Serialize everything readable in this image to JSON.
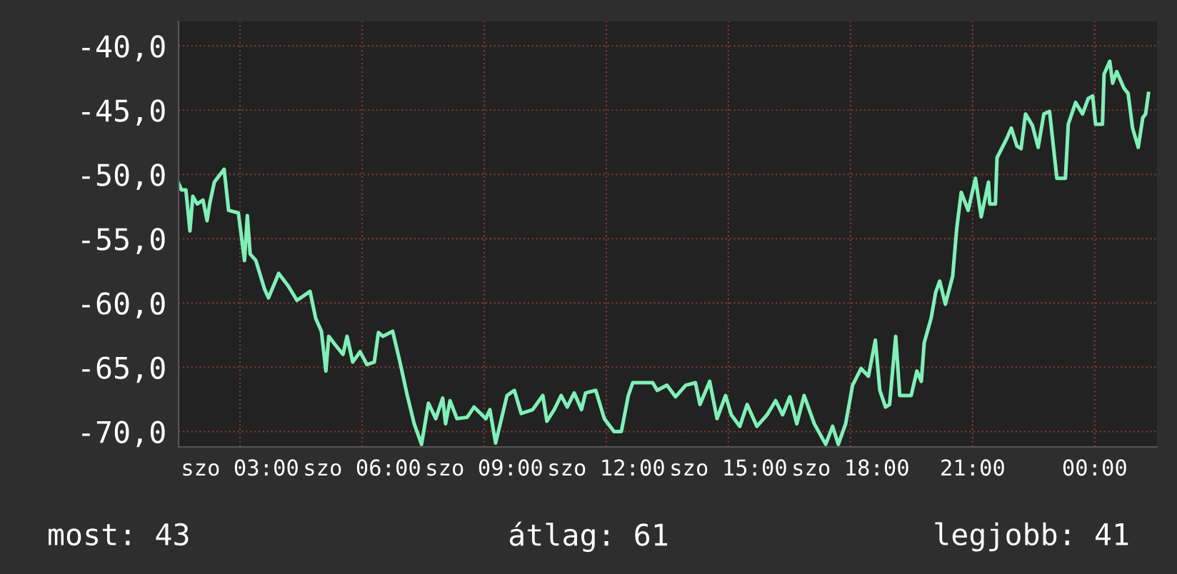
{
  "chart_data": {
    "type": "line",
    "x": [
      1.49,
      1.56,
      1.67,
      1.77,
      1.84,
      1.95,
      2.09,
      2.19,
      2.26,
      2.37,
      2.61,
      2.72,
      2.96,
      3.11,
      3.18,
      3.25,
      3.39,
      3.6,
      3.7,
      3.95,
      4.19,
      4.4,
      4.72,
      4.86,
      5.0,
      5.11,
      5.18,
      5.35,
      5.53,
      5.63,
      5.77,
      5.95,
      6.12,
      6.3,
      6.4,
      6.51,
      6.75,
      6.93,
      7.11,
      7.28,
      7.46,
      7.63,
      7.81,
      7.98,
      8.05,
      8.16,
      8.33,
      8.58,
      8.75,
      9.04,
      9.14,
      9.28,
      9.56,
      9.74,
      9.91,
      10.19,
      10.44,
      10.54,
      10.72,
      10.89,
      11.04,
      11.21,
      11.39,
      11.49,
      11.74,
      11.95,
      12.19,
      12.37,
      12.54,
      12.65,
      13.14,
      13.25,
      13.49,
      13.7,
      13.95,
      14.19,
      14.3,
      14.54,
      14.72,
      14.93,
      15.07,
      15.28,
      15.46,
      15.7,
      15.95,
      16.16,
      16.33,
      16.51,
      16.68,
      16.86,
      17.11,
      17.39,
      17.56,
      17.7,
      17.88,
      18.05,
      18.26,
      18.44,
      18.61,
      18.72,
      18.86,
      18.96,
      19.11,
      19.21,
      19.49,
      19.63,
      19.74,
      19.81,
      19.98,
      20.09,
      20.19,
      20.33,
      20.51,
      20.61,
      20.72,
      20.89,
      21.07,
      21.21,
      21.39,
      21.42,
      21.56,
      21.6,
      21.84,
      21.95,
      22.09,
      22.19,
      22.3,
      22.47,
      22.61,
      22.75,
      22.89,
      23.07,
      23.28,
      23.35,
      23.53,
      23.7,
      23.84,
      23.95,
      24.02,
      24.19,
      24.23,
      24.37,
      24.44,
      24.54,
      24.72,
      24.82,
      24.93,
      25.07,
      25.18,
      25.25,
      25.32
    ],
    "series": [
      {
        "color": "#80f0b8",
        "values": [
          -50.7,
          -51.2,
          -51.2,
          -54.4,
          -51.7,
          -52.3,
          -52.0,
          -53.6,
          -52.2,
          -50.6,
          -49.6,
          -52.8,
          -53.0,
          -56.7,
          -53.2,
          -56.2,
          -56.7,
          -58.9,
          -59.6,
          -57.7,
          -58.7,
          -59.8,
          -59.1,
          -61.2,
          -62.2,
          -65.3,
          -62.6,
          -63.3,
          -64.0,
          -62.6,
          -64.6,
          -63.8,
          -64.8,
          -64.6,
          -62.3,
          -62.6,
          -62.2,
          -64.6,
          -67.2,
          -69.4,
          -71.0,
          -67.8,
          -69.0,
          -67.4,
          -69.4,
          -67.6,
          -69.0,
          -68.9,
          -68.1,
          -69.0,
          -68.3,
          -70.9,
          -67.2,
          -66.8,
          -68.6,
          -68.3,
          -67.2,
          -69.2,
          -68.3,
          -67.2,
          -68.1,
          -67.0,
          -68.3,
          -67.0,
          -66.8,
          -69.0,
          -70.0,
          -70.0,
          -67.2,
          -66.2,
          -66.2,
          -66.8,
          -66.4,
          -67.3,
          -66.4,
          -66.2,
          -67.9,
          -66.1,
          -69.0,
          -67.2,
          -68.7,
          -69.6,
          -67.9,
          -69.6,
          -68.7,
          -67.6,
          -68.7,
          -67.3,
          -69.4,
          -67.2,
          -69.4,
          -71.0,
          -69.6,
          -71.0,
          -69.4,
          -66.4,
          -65.1,
          -65.7,
          -62.9,
          -66.8,
          -68.1,
          -67.9,
          -62.6,
          -67.2,
          -67.2,
          -65.3,
          -66.1,
          -63.1,
          -61.2,
          -59.2,
          -58.3,
          -60.1,
          -57.9,
          -54.2,
          -51.4,
          -52.8,
          -50.3,
          -53.3,
          -50.6,
          -52.3,
          -52.3,
          -48.7,
          -47.2,
          -46.4,
          -47.8,
          -48.0,
          -45.3,
          -46.2,
          -47.9,
          -45.3,
          -45.1,
          -50.3,
          -50.3,
          -46.1,
          -44.4,
          -45.3,
          -44.1,
          -43.9,
          -46.1,
          -46.1,
          -42.2,
          -41.2,
          -42.9,
          -42.0,
          -43.3,
          -43.7,
          -46.4,
          -47.9,
          -45.6,
          -45.3,
          -43.7
        ]
      }
    ],
    "xlim": [
      1.49,
      25.53
    ],
    "xticks": [
      {
        "value": 3,
        "label": "szo 03:00"
      },
      {
        "value": 6,
        "label": "szo 06:00"
      },
      {
        "value": 9,
        "label": "szo 09:00"
      },
      {
        "value": 12,
        "label": "szo 12:00"
      },
      {
        "value": 15,
        "label": "szo 15:00"
      },
      {
        "value": 18,
        "label": "szo 18:00"
      },
      {
        "value": 21,
        "label": "21:00"
      },
      {
        "value": 24,
        "label": "00:00"
      }
    ],
    "ylim": [
      -71.2,
      -38.1
    ],
    "yticks": [
      {
        "value": -70,
        "label": "-70,0"
      },
      {
        "value": -65,
        "label": "-65,0"
      },
      {
        "value": -60,
        "label": "-60,0"
      },
      {
        "value": -55,
        "label": "-55,0"
      },
      {
        "value": -50,
        "label": "-50,0"
      },
      {
        "value": -45,
        "label": "-45,0"
      },
      {
        "value": -40,
        "label": "-40,0"
      }
    ],
    "grid": true,
    "annotations": [
      "most: 43",
      "átlag: 61",
      "legjobb: 41"
    ]
  }
}
